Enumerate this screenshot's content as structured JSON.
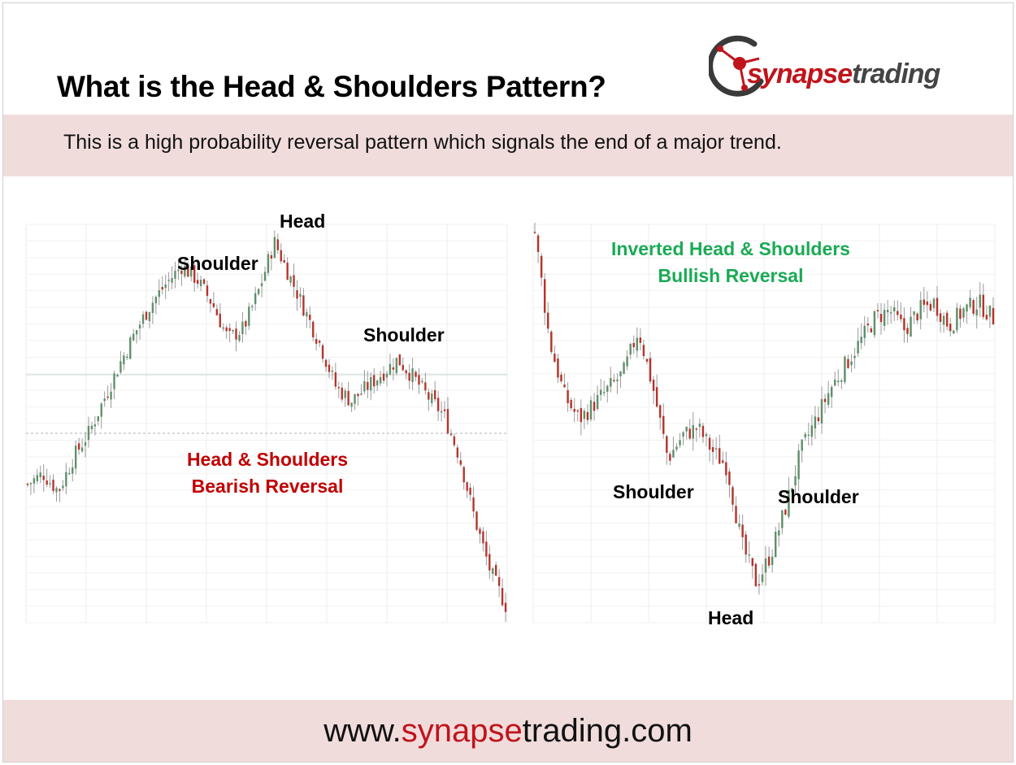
{
  "title": "What is the Head & Shoulders Pattern?",
  "subtitle": "This is a high probability reversal pattern which signals the end of a major trend.",
  "logo": {
    "part1": "synapse",
    "part2": "trading"
  },
  "footer_url": {
    "prefix": "www.",
    "highlight": "synapse",
    "suffix": "trading.com"
  },
  "colors": {
    "brand_red": "#c0141b",
    "band": "#f1dcdc",
    "bull_candle": "#5f8f6a",
    "bear_candle": "#b5332b",
    "bullish_label": "#1aaa55",
    "bearish_label": "#c00000"
  },
  "chart_data": [
    {
      "type": "candlestick",
      "labels": {
        "head": "Head",
        "left_shoulder": "Shoulder",
        "right_shoulder": "Shoulder",
        "pattern_line1": "Head & Shoulders",
        "pattern_line2": "Bearish Reversal"
      },
      "price_path": [
        0.3,
        0.33,
        0.28,
        0.38,
        0.45,
        0.55,
        0.65,
        0.74,
        0.82,
        0.88,
        0.93,
        0.89,
        0.82,
        0.72,
        0.75,
        0.86,
        1.0,
        0.9,
        0.8,
        0.7,
        0.58,
        0.54,
        0.58,
        0.62,
        0.66,
        0.61,
        0.55,
        0.5,
        0.38,
        0.2,
        0.05,
        -0.05
      ],
      "grid": true
    },
    {
      "type": "candlestick",
      "labels": {
        "title_line1": "Inverted Head & Shoulders",
        "title_line2": "Bullish Reversal",
        "left_shoulder": "Shoulder",
        "head": "Head",
        "right_shoulder": "Shoulder"
      },
      "price_path": [
        1.0,
        0.72,
        0.58,
        0.52,
        0.56,
        0.6,
        0.64,
        0.75,
        0.6,
        0.42,
        0.48,
        0.5,
        0.44,
        0.4,
        0.2,
        0.1,
        0.18,
        0.3,
        0.44,
        0.52,
        0.6,
        0.66,
        0.72,
        0.78,
        0.8,
        0.75,
        0.8,
        0.82,
        0.76,
        0.8,
        0.82,
        0.78
      ],
      "grid": true
    }
  ]
}
